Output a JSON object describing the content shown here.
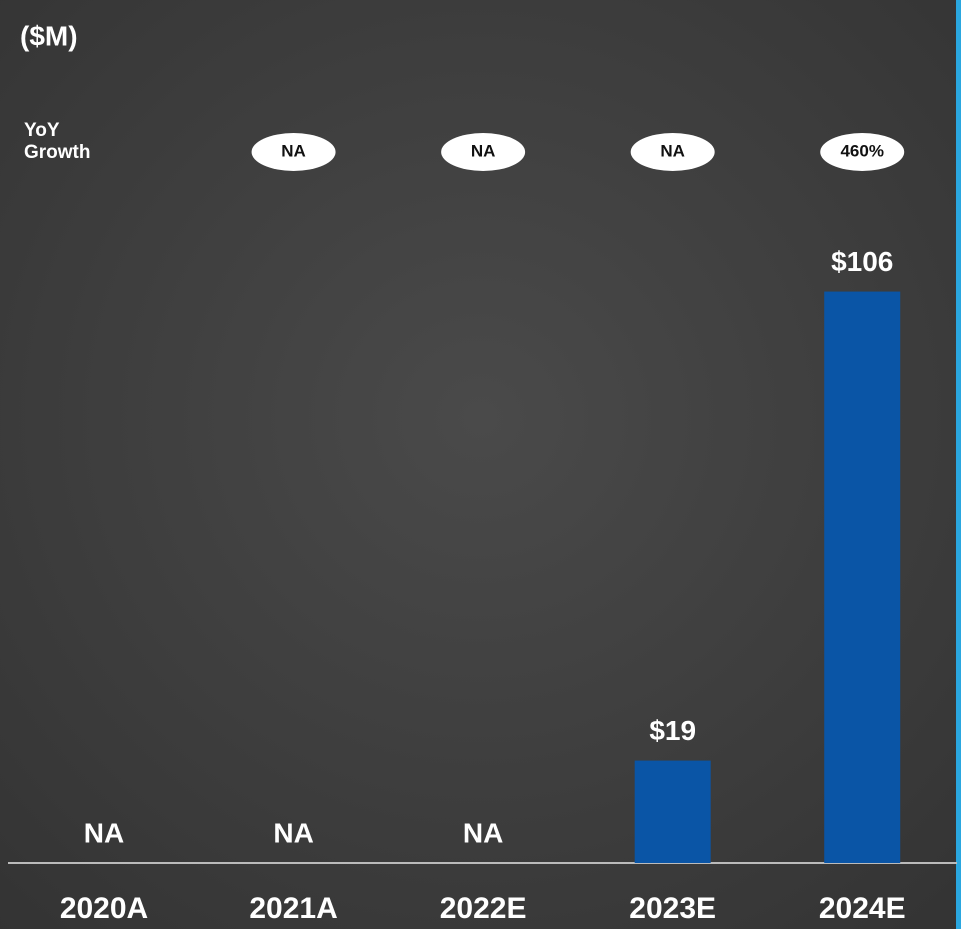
{
  "chart_data": {
    "type": "bar",
    "unit_label": "($M)",
    "categories": [
      "2020A",
      "2021A",
      "2022E",
      "2023E",
      "2024E"
    ],
    "values": [
      null,
      null,
      null,
      19,
      106
    ],
    "value_labels": [
      "NA",
      "NA",
      "NA",
      "$19",
      "$106"
    ],
    "color": "#0a55a6",
    "ylim": [
      0,
      110
    ],
    "growth": {
      "label": "YoY Growth",
      "values": [
        null,
        null,
        null,
        null,
        460
      ],
      "value_labels": [
        null,
        "NA",
        "NA",
        "NA",
        "460%"
      ]
    }
  }
}
